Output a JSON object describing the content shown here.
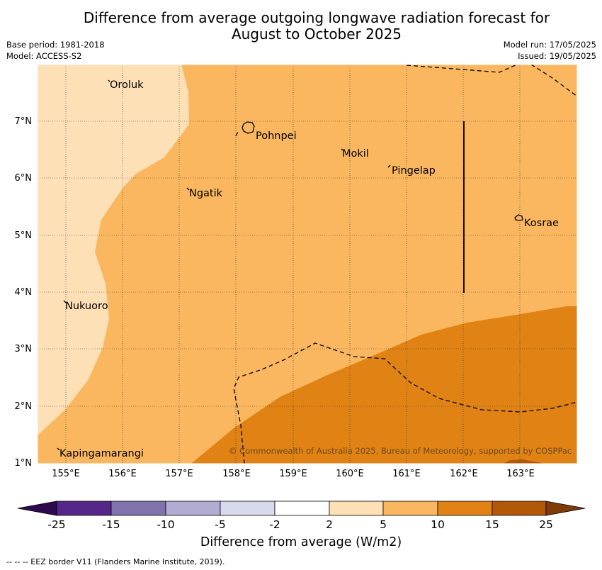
{
  "title": {
    "line1": "Difference from average outgoing longwave radiation forecast for",
    "line2": "August to October 2025"
  },
  "meta": {
    "base_period": "Base period: 1981-2018",
    "model": "Model: ACCESS-S2",
    "model_run": "Model run: 17/05/2025",
    "issued": "Issued: 19/05/2025"
  },
  "axes": {
    "lat_labels": [
      "7°N",
      "6°N",
      "5°N",
      "4°N",
      "3°N",
      "2°N",
      "1°N"
    ],
    "lon_labels": [
      "155°E",
      "156°E",
      "157°E",
      "158°E",
      "159°E",
      "160°E",
      "161°E",
      "162°E",
      "163°E"
    ]
  },
  "places": {
    "oroluk": "Oroluk",
    "pohnpei": "Pohnpei",
    "mokil": "Mokil",
    "pingelap": "Pingelap",
    "ngatik": "Ngatik",
    "kosrae": "Kosrae",
    "nukuoro": "Nukuoro",
    "kapingamarangi": "Kapingamarangi"
  },
  "copyright": "© Commonwealth of Australia 2025, Bureau of Meteorology, supported by COSPPac",
  "colorbar": {
    "ticks": [
      "-25",
      "-15",
      "-10",
      "-5",
      "-2",
      "2",
      "5",
      "10",
      "15",
      "25"
    ],
    "colors": [
      "#2d0a4e",
      "#542788",
      "#8073ac",
      "#b2abd2",
      "#d8daeb",
      "#ffffff",
      "#fee0b6",
      "#fbb760",
      "#e08214",
      "#b35806",
      "#7f3b08"
    ],
    "label": "Difference from average (W/m2)"
  },
  "footer": "--  --  -- EEZ border V11 (Flanders Marine Institute, 2019)."
}
